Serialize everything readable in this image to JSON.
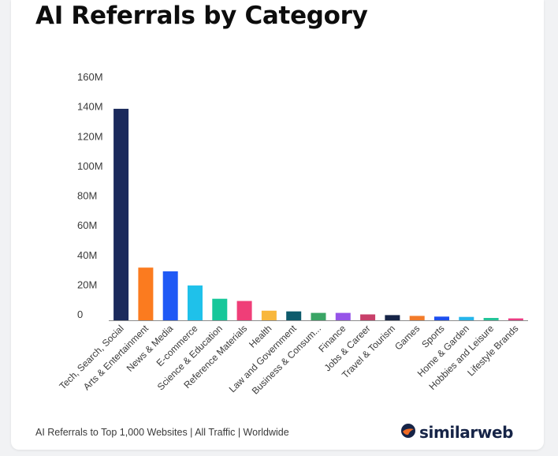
{
  "header": {
    "title": "AI Referrals by Category"
  },
  "footer": {
    "caption": "AI Referrals to Top 1,000 Websites | All Traffic | Worldwide"
  },
  "brand": {
    "name": "similarweb",
    "icon": "similarweb-logo-icon",
    "color": "#162447",
    "accent": "#f06b24"
  },
  "chart_data": {
    "type": "bar",
    "title": "AI Referrals by Category",
    "xlabel": "",
    "ylabel": "",
    "ylim": [
      0,
      160000000
    ],
    "y_ticks": [
      "0",
      "20M",
      "40M",
      "60M",
      "80M",
      "100M",
      "120M",
      "140M",
      "160M"
    ],
    "grid": false,
    "legend": "none",
    "categories": [
      "Tech, Search, Social",
      "Arts & Entertainment",
      "News & Media",
      "E-commerce",
      "Science & Education",
      "Reference Materials",
      "Health",
      "Law and Government",
      "Business & Consum...",
      "Finance",
      "Jobs & Career",
      "Travel & Tourism",
      "Games",
      "Sports",
      "Home & Garden",
      "Hobbies and Leisure",
      "Lifestyle Brands"
    ],
    "values": [
      142500000,
      35500000,
      33000000,
      23500000,
      14500000,
      13000000,
      6500000,
      6000000,
      5000000,
      5000000,
      4000000,
      3500000,
      3000000,
      2500000,
      2300000,
      1600000,
      1300000
    ],
    "colors": [
      "#1b2a5c",
      "#fb7b1f",
      "#1f59f5",
      "#1fc1ea",
      "#17c79a",
      "#ef3e78",
      "#f8b73c",
      "#0e5b6c",
      "#3aa565",
      "#9654e8",
      "#c8406a",
      "#162447",
      "#f27b2a",
      "#1d4fef",
      "#26b5ea",
      "#23c498",
      "#ea3b82"
    ]
  }
}
